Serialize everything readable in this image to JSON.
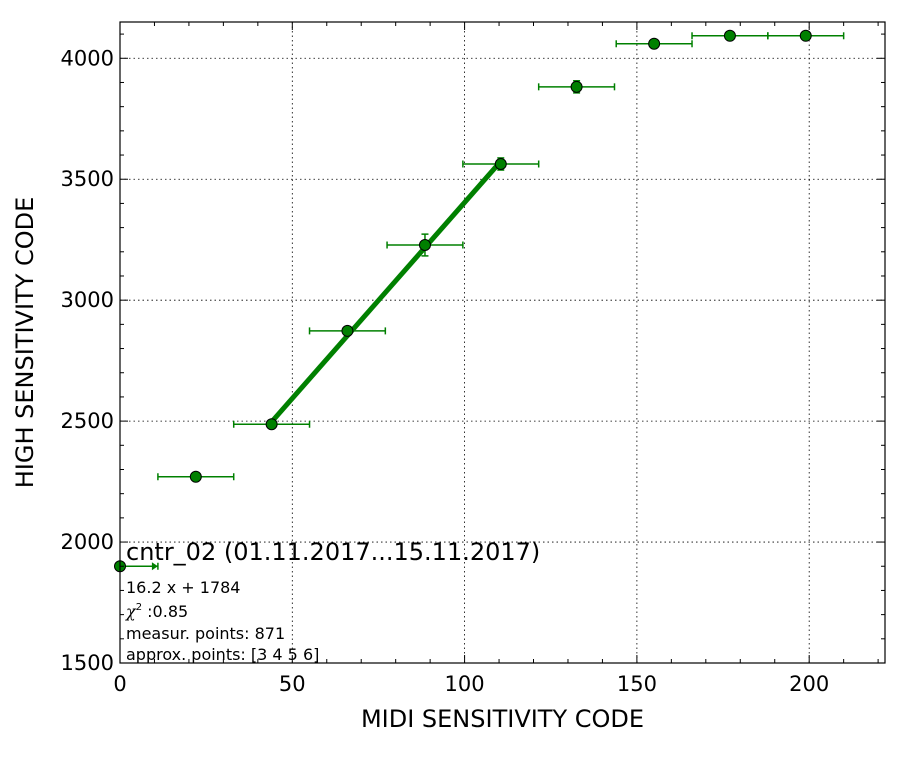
{
  "chart_data": {
    "type": "scatter",
    "title": "",
    "xlabel": "MIDI SENSITIVITY CODE",
    "ylabel": "HIGH SENSITIVITY CODE",
    "xlim": [
      0,
      222
    ],
    "ylim": [
      1500,
      4150
    ],
    "x_ticks": [
      0,
      50,
      100,
      150,
      200
    ],
    "y_ticks": [
      1500,
      2000,
      2500,
      3000,
      3500,
      4000
    ],
    "x_tick_labels": [
      "0",
      "50",
      "100",
      "150",
      "200"
    ],
    "y_tick_labels": [
      "1500",
      "2000",
      "2500",
      "3000",
      "3500",
      "4000"
    ],
    "grid": true,
    "marker_color": "#008000",
    "line_color": "#008000",
    "points": [
      {
        "x": 0,
        "y": 1900,
        "xerr_low": 0,
        "xerr_high": 11,
        "yerr": 0
      },
      {
        "x": 22,
        "y": 2270,
        "xerr_low": 11,
        "xerr_high": 11,
        "yerr": 0
      },
      {
        "x": 44,
        "y": 2487,
        "xerr_low": 11,
        "xerr_high": 11,
        "yerr": 0
      },
      {
        "x": 66,
        "y": 2873,
        "xerr_low": 11,
        "xerr_high": 11,
        "yerr": 0
      },
      {
        "x": 88.5,
        "y": 3228,
        "xerr_low": 11,
        "xerr_high": 11,
        "yerr": 45
      },
      {
        "x": 110.5,
        "y": 3563,
        "xerr_low": 11,
        "xerr_high": 11,
        "yerr": 25
      },
      {
        "x": 132.5,
        "y": 3882,
        "xerr_low": 11,
        "xerr_high": 11,
        "yerr": 25
      },
      {
        "x": 155,
        "y": 4060,
        "xerr_low": 11,
        "xerr_high": 11,
        "yerr": 0
      },
      {
        "x": 177,
        "y": 4093,
        "xerr_low": 11,
        "xerr_high": 11,
        "yerr": 0
      },
      {
        "x": 199,
        "y": 4093,
        "xerr_low": 11,
        "xerr_high": 11,
        "yerr": 0
      }
    ],
    "fit": {
      "slope": 16.2,
      "intercept": 1784,
      "x_start": 44,
      "x_end": 110.5
    },
    "annotation": {
      "title": "cntr_02 (01.11.2017...15.11.2017)",
      "equation": "16.2 x + 1784",
      "chi_value": " :0.85",
      "measure_points": "measur. points: 871",
      "approx_points": "approx. points: [3 4 5 6]"
    }
  }
}
